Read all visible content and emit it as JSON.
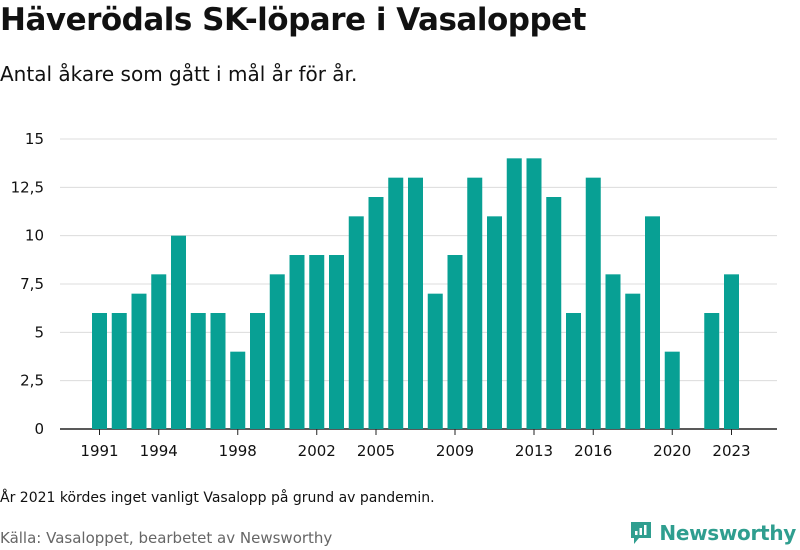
{
  "header": {
    "title": "Häverödals SK-löpare i Vasaloppet",
    "subtitle": "Antal åkare som gått i mål år för år."
  },
  "footer": {
    "note": "År 2021 kördes inget vanligt Vasalopp på grund av pandemin.",
    "source": "Källa: Vasaloppet, bearbetet av Newsworthy",
    "brand": "Newsworthy"
  },
  "colors": {
    "bar": "#08a094",
    "grid": "#dcdcdc",
    "brand": "#2f9e8f"
  },
  "chart_data": {
    "type": "bar",
    "categories": [
      1991,
      1992,
      1993,
      1994,
      1995,
      1996,
      1997,
      1998,
      1999,
      2000,
      2001,
      2002,
      2003,
      2004,
      2005,
      2006,
      2007,
      2008,
      2009,
      2010,
      2011,
      2012,
      2013,
      2014,
      2015,
      2016,
      2017,
      2018,
      2019,
      2020,
      2021,
      2022,
      2023
    ],
    "values": [
      6,
      6,
      7,
      8,
      10,
      6,
      6,
      4,
      6,
      8,
      9,
      9,
      9,
      11,
      12,
      13,
      13,
      7,
      9,
      13,
      11,
      14,
      14,
      12,
      6,
      13,
      8,
      7,
      11,
      4,
      0,
      6,
      8
    ],
    "x_tick_labels": [
      "1991",
      "1994",
      "1998",
      "2002",
      "2005",
      "2009",
      "2013",
      "2016",
      "2020",
      "2023"
    ],
    "y_ticks": [
      0,
      2.5,
      5,
      7.5,
      10,
      12.5,
      15
    ],
    "y_tick_labels": [
      "0",
      "2,5",
      "5",
      "7,5",
      "10",
      "12,5",
      "15"
    ],
    "ylim": [
      0,
      15
    ],
    "grid": true
  }
}
